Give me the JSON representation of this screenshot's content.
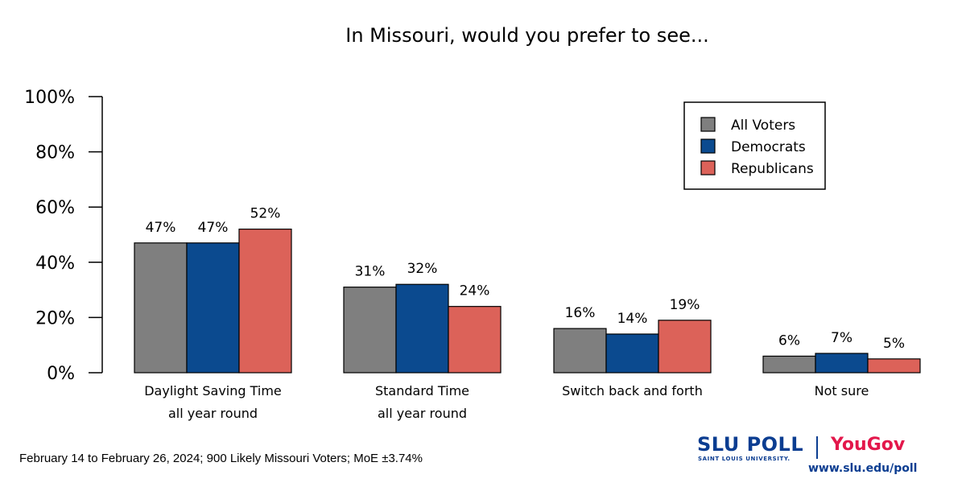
{
  "chart_data": {
    "type": "bar",
    "title": "In Missouri, would you prefer to see...",
    "categories": [
      [
        "Daylight Saving Time",
        "all year round"
      ],
      [
        "Standard Time",
        "all year round"
      ],
      [
        "Switch back and forth"
      ],
      [
        "Not sure"
      ]
    ],
    "series": [
      {
        "name": "All Voters",
        "color": "#7f7f7f",
        "values": [
          47,
          31,
          16,
          6
        ]
      },
      {
        "name": "Democrats",
        "color": "#0b4a8f",
        "values": [
          47,
          32,
          14,
          7
        ]
      },
      {
        "name": "Republicans",
        "color": "#dc6259",
        "values": [
          52,
          24,
          19,
          5
        ]
      }
    ],
    "y_ticks": [
      "0%",
      "20%",
      "40%",
      "60%",
      "80%",
      "100%"
    ],
    "ylim": [
      0,
      100
    ],
    "legend_position": "top-right",
    "grid": false
  },
  "footer": {
    "note": "February 14 to February 26, 2024; 900 Likely Missouri Voters; MoE ±3.74%"
  },
  "branding": {
    "slu": "SLU POLL",
    "slu_sub": "SAINT LOUIS UNIVERSITY.",
    "partner": "YouGov",
    "url": "www.slu.edu/poll"
  }
}
